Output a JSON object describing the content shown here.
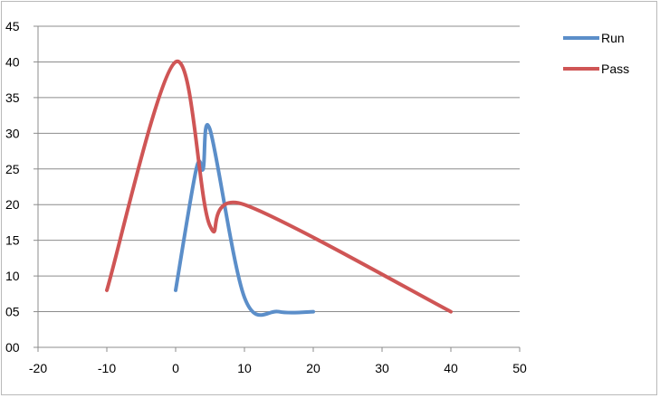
{
  "chart_data": {
    "type": "line",
    "title": "",
    "xlabel": "",
    "ylabel": "",
    "xlim": [
      -20,
      50
    ],
    "ylim": [
      0,
      45
    ],
    "x_ticks": [
      -20,
      -10,
      0,
      10,
      20,
      30,
      40,
      50
    ],
    "x_tick_labels": [
      "-20",
      "-10",
      "0",
      "10",
      "20",
      "30",
      "40",
      "50"
    ],
    "y_ticks": [
      0,
      5,
      10,
      15,
      20,
      25,
      30,
      35,
      40,
      45
    ],
    "y_tick_labels": [
      "00",
      "05",
      "10",
      "15",
      "20",
      "25",
      "30",
      "35",
      "40",
      "45"
    ],
    "grid": "horizontal",
    "smooth": true,
    "legend_position": "top-right",
    "series": [
      {
        "name": "Run",
        "color": "#5b8ec9",
        "points": [
          [
            0,
            8
          ],
          [
            3,
            25
          ],
          [
            4,
            25
          ],
          [
            5,
            30.5
          ],
          [
            10,
            7
          ],
          [
            15,
            5
          ],
          [
            20,
            5
          ]
        ]
      },
      {
        "name": "Pass",
        "color": "#cf5555",
        "points": [
          [
            -10,
            8
          ],
          [
            0,
            40
          ],
          [
            5,
            17
          ],
          [
            10,
            20
          ],
          [
            40,
            5
          ]
        ]
      }
    ]
  }
}
